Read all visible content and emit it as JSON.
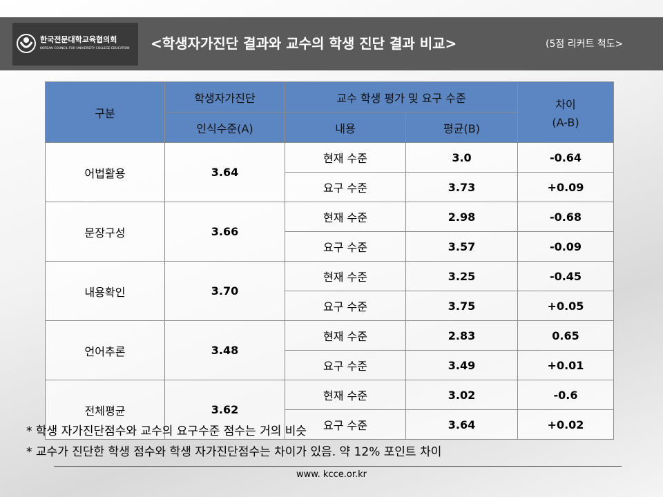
{
  "header": {
    "org_name": "한국전문대학교육협의회",
    "org_name_en": "KOREAN COUNCIL FOR UNIVERSITY COLLEGE EDUCATION",
    "title": "<학생자가진단 결과와 교수의 학생 진단 결과 비교>",
    "subtitle": "(5점 리커트 척도>"
  },
  "table": {
    "head": {
      "category": "구분",
      "self": "학생자가진단",
      "self_sub": "인식수준(A)",
      "prof": "교수 학생 평가 및 요구 수준",
      "prof_content": "내용",
      "prof_mean": "평균(B)",
      "diff": "차이",
      "diff_sub": "(A-B)"
    },
    "groups": [
      {
        "name": "어법활용",
        "score": "3.64",
        "rows": [
          {
            "level": "현재 수준",
            "mean": "3.0",
            "diff": "-0.64"
          },
          {
            "level": "요구 수준",
            "mean": "3.73",
            "diff": "+0.09"
          }
        ]
      },
      {
        "name": "문장구성",
        "score": "3.66",
        "rows": [
          {
            "level": "현재 수준",
            "mean": "2.98",
            "diff": "-0.68"
          },
          {
            "level": "요구 수준",
            "mean": "3.57",
            "diff": "-0.09"
          }
        ]
      },
      {
        "name": "내용확인",
        "score": "3.70",
        "rows": [
          {
            "level": "현재 수준",
            "mean": "3.25",
            "diff": "-0.45"
          },
          {
            "level": "요구 수준",
            "mean": "3.75",
            "diff": "+0.05"
          }
        ]
      },
      {
        "name": "언어추론",
        "score": "3.48",
        "rows": [
          {
            "level": "현재 수준",
            "mean": "2.83",
            "diff": "0.65"
          },
          {
            "level": "요구 수준",
            "mean": "3.49",
            "diff": "+0.01"
          }
        ]
      },
      {
        "name": "전체평균",
        "score": "3.62",
        "rows": [
          {
            "level": "현재 수준",
            "mean": "3.02",
            "diff": "-0.6"
          },
          {
            "level": "요구 수준",
            "mean": "3.64",
            "diff": "+0.02"
          }
        ]
      }
    ]
  },
  "notes": [
    "* 학생 자가진단점수와 교수의 요구수준 점수는 거의 비슷",
    "* 교수가 진단한 학생 점수와 학생 자가진단점수는 차이가 있음. 약 12% 포인트 차이"
  ],
  "footer": {
    "url": "www. kcce.or.kr"
  }
}
